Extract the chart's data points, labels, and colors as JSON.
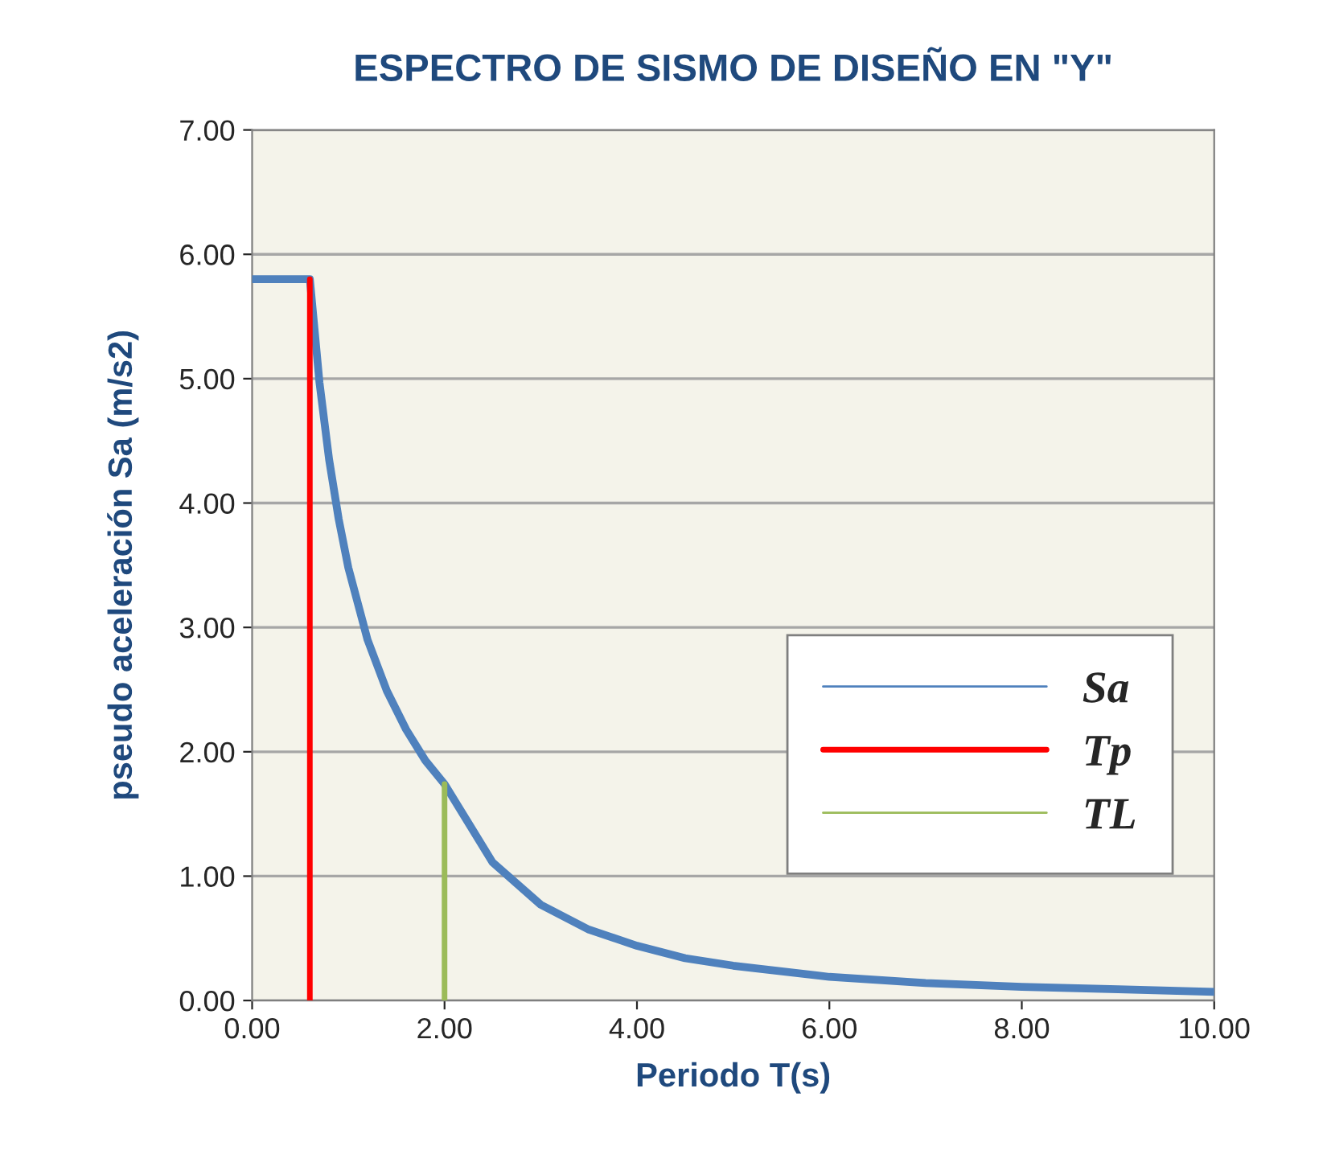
{
  "chart_data": {
    "type": "line",
    "title": "ESPECTRO DE SISMO DE DISEÑO EN \"Y\"",
    "xlabel": "Periodo T(s)",
    "ylabel": "pseudo aceleración Sa (m/s2)",
    "series": [
      {
        "name": "Sa",
        "color": "#4f81bd",
        "x": [
          0,
          0.6,
          0.7,
          0.8,
          0.9,
          1.0,
          1.2,
          1.4,
          1.6,
          1.8,
          2.0,
          2.5,
          3.0,
          3.5,
          4.0,
          4.5,
          5.0,
          6.0,
          7.0,
          8.0,
          9.0,
          10.0
        ],
        "values": [
          5.8,
          5.8,
          4.97,
          4.35,
          3.87,
          3.48,
          2.9,
          2.49,
          2.18,
          1.93,
          1.74,
          1.11,
          0.77,
          0.57,
          0.44,
          0.34,
          0.28,
          0.19,
          0.14,
          0.11,
          0.09,
          0.07
        ]
      },
      {
        "name": "Tp",
        "color": "#ff0000",
        "x": [
          0.6,
          0.6
        ],
        "values": [
          0,
          5.8
        ]
      },
      {
        "name": "TL",
        "color": "#9bbb59",
        "x": [
          2.0,
          2.0
        ],
        "values": [
          0,
          1.74
        ]
      }
    ],
    "xlim": [
      0,
      10
    ],
    "xticks": [
      {
        "value": 0,
        "label": "0.00"
      },
      {
        "value": 2,
        "label": "2.00"
      },
      {
        "value": 4,
        "label": "4.00"
      },
      {
        "value": 6,
        "label": "6.00"
      },
      {
        "value": 8,
        "label": "8.00"
      },
      {
        "value": 10,
        "label": "10.00"
      }
    ],
    "ylim": [
      0,
      7
    ],
    "yticks": [
      {
        "value": 0,
        "label": "0.00"
      },
      {
        "value": 1,
        "label": "1.00"
      },
      {
        "value": 2,
        "label": "2.00"
      },
      {
        "value": 3,
        "label": "3.00"
      },
      {
        "value": 4,
        "label": "4.00"
      },
      {
        "value": 5,
        "label": "5.00"
      },
      {
        "value": 6,
        "label": "6.00"
      },
      {
        "value": 7,
        "label": "7.00"
      }
    ],
    "grid": "y",
    "legend": "lower right",
    "marker": "none",
    "line_style": "solid"
  }
}
